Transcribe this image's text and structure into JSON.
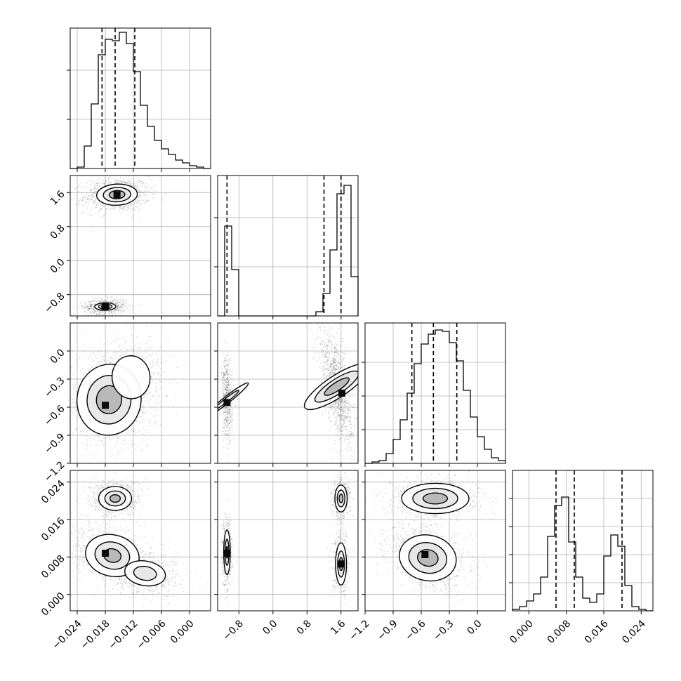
{
  "chart_data": {
    "type": "corner",
    "title": "",
    "params": [
      {
        "id": "p0",
        "range": [
          -0.0255,
          0.0045
        ],
        "ticks": [
          -0.024,
          -0.018,
          -0.012,
          -0.006,
          0.0
        ],
        "tick_labels": [
          "−0.024",
          "−0.018",
          "−0.012",
          "−0.006",
          "0.000"
        ],
        "quantiles": [
          -0.0187,
          -0.0159,
          -0.0117
        ],
        "hist_y_ticks": [
          0.35,
          0.7
        ],
        "hist_ymax": 1.0,
        "hist": [
          0.0,
          0.01,
          0.16,
          0.46,
          0.81,
          0.92,
          0.91,
          0.97,
          0.89,
          0.69,
          0.45,
          0.3,
          0.2,
          0.14,
          0.1,
          0.06,
          0.04,
          0.02,
          0.01,
          0.0
        ]
      },
      {
        "id": "p1",
        "range": [
          -1.3,
          2.0
        ],
        "ticks": [
          -0.8,
          0.0,
          0.8,
          1.6
        ],
        "tick_labels": [
          "−0.8",
          "0.0",
          "0.8",
          "1.6"
        ],
        "quantiles": [
          -1.08,
          1.2,
          1.6
        ],
        "hist_y_ticks": [
          0.35,
          0.7
        ],
        "hist_ymax": 1.0,
        "hist": [
          0.0,
          0.64,
          0.33,
          0.0,
          0.0,
          0.0,
          0.0,
          0.0,
          0.0,
          0.0,
          0.0,
          0.0,
          0.0,
          0.0,
          0.03,
          0.16,
          0.47,
          0.87,
          0.93,
          0.28
        ]
      },
      {
        "id": "p2",
        "range": [
          -1.2,
          0.3
        ],
        "ticks": [
          -1.2,
          -0.9,
          -0.6,
          -0.3,
          0.0
        ],
        "tick_labels": [
          "−1.2",
          "−0.9",
          "−0.6",
          "−0.3",
          "0.0"
        ],
        "quantiles": [
          -0.7,
          -0.47,
          -0.22
        ],
        "hist_y_ticks": [
          0.24,
          0.48,
          0.72
        ],
        "hist_ymax": 1.0,
        "hist": [
          0.0,
          0.01,
          0.02,
          0.07,
          0.17,
          0.31,
          0.5,
          0.71,
          0.85,
          0.92,
          0.95,
          0.94,
          0.86,
          0.73,
          0.52,
          0.33,
          0.19,
          0.1,
          0.04,
          0.02
        ]
      },
      {
        "id": "p3",
        "range": [
          -0.0035,
          0.0265
        ],
        "ticks": [
          0.0,
          0.008,
          0.016,
          0.024
        ],
        "tick_labels": [
          "0.000",
          "0.008",
          "0.016",
          "0.024"
        ],
        "quantiles": [
          0.0058,
          0.0097,
          0.0199
        ],
        "hist_y_ticks": [
          0.2,
          0.4,
          0.6,
          0.8
        ],
        "hist_ymax": 1.0,
        "hist": [
          0.01,
          0.03,
          0.07,
          0.12,
          0.24,
          0.53,
          0.75,
          0.81,
          0.49,
          0.24,
          0.09,
          0.06,
          0.12,
          0.39,
          0.54,
          0.46,
          0.18,
          0.03,
          0.01,
          0.0
        ]
      }
    ],
    "pair_plots": [
      {
        "row": 1,
        "col": 0,
        "clusters": [
          {
            "c": [
              -0.0155,
              1.55
            ],
            "s": [
              0.0028,
              0.16
            ],
            "rho": 0.1,
            "n": 1100,
            "levels": [
              1.55,
              1.05,
              0.6
            ]
          },
          {
            "c": [
              -0.018,
              -1.08
            ],
            "s": [
              0.0018,
              0.07
            ],
            "rho": 0.05,
            "n": 700,
            "levels": [
              1.25,
              0.8,
              0.45
            ]
          }
        ],
        "cores": [
          [
            -0.0155,
            1.55
          ],
          [
            -0.018,
            -1.08
          ]
        ]
      },
      {
        "row": 2,
        "col": 0,
        "clusters": [
          {
            "c": [
              -0.0172,
              -0.52
            ],
            "s": [
              0.0036,
              0.2
            ],
            "rho": -0.15,
            "n": 1300,
            "levels": [
              1.9,
              1.3,
              0.75
            ]
          },
          {
            "c": [
              -0.0125,
              -0.28
            ],
            "s": [
              0.003,
              0.17
            ],
            "rho": 0.1,
            "n": 500,
            "levels": [
              1.35
            ]
          }
        ],
        "cores": [
          [
            -0.018,
            -0.58
          ]
        ]
      },
      {
        "row": 2,
        "col": 1,
        "clusters": [
          {
            "c": [
              -1.08,
              -0.52
            ],
            "s": [
              0.05,
              0.18
            ],
            "rho": -0.2,
            "n": 600,
            "levels": [
              1.6,
              0.9
            ]
          },
          {
            "c": [
              1.5,
              -0.38
            ],
            "s": [
              0.15,
              0.24
            ],
            "rho": -0.55,
            "n": 1300,
            "levels": [
              1.7,
              1.15,
              0.65
            ]
          }
        ],
        "cores": [
          [
            1.62,
            -0.45
          ],
          [
            -1.08,
            -0.55
          ]
        ]
      },
      {
        "row": 3,
        "col": 0,
        "clusters": [
          {
            "c": [
              -0.0159,
              0.0205
            ],
            "s": [
              0.0022,
              0.0016
            ],
            "rho": 0.0,
            "n": 700,
            "levels": [
              1.6,
              1.0,
              0.5
            ]
          },
          {
            "c": [
              -0.0165,
              0.0083
            ],
            "s": [
              0.0034,
              0.0026
            ],
            "rho": -0.35,
            "n": 1000,
            "levels": [
              1.7,
              1.1,
              0.55
            ]
          },
          {
            "c": [
              -0.0095,
              0.0045
            ],
            "s": [
              0.0035,
              0.0021
            ],
            "rho": -0.3,
            "n": 550,
            "levels": [
              1.25,
              0.7
            ]
          }
        ],
        "cores": [
          [
            -0.018,
            0.0088
          ]
        ]
      },
      {
        "row": 3,
        "col": 1,
        "clusters": [
          {
            "c": [
              1.6,
              0.0205
            ],
            "s": [
              0.09,
              0.0018
            ],
            "rho": 0.0,
            "n": 450,
            "levels": [
              1.6,
              1.0,
              0.5
            ]
          },
          {
            "c": [
              1.6,
              0.0065
            ],
            "s": [
              0.08,
              0.0028
            ],
            "rho": 0.0,
            "n": 450,
            "levels": [
              1.6,
              1.0,
              0.5
            ]
          },
          {
            "c": [
              -1.08,
              0.009
            ],
            "s": [
              0.045,
              0.0028
            ],
            "rho": 0.0,
            "n": 550,
            "levels": [
              1.7,
              1.0,
              0.45
            ]
          }
        ],
        "cores": [
          [
            -1.08,
            0.0088
          ],
          [
            1.6,
            0.0065
          ]
        ]
      },
      {
        "row": 3,
        "col": 2,
        "clusters": [
          {
            "c": [
              -0.45,
              0.0205
            ],
            "s": [
              0.2,
              0.0018
            ],
            "rho": 0.0,
            "n": 800,
            "levels": [
              1.8,
              1.2,
              0.65
            ]
          },
          {
            "c": [
              -0.53,
              0.0078
            ],
            "s": [
              0.17,
              0.0027
            ],
            "rho": -0.3,
            "n": 1100,
            "levels": [
              1.8,
              1.2,
              0.65
            ]
          }
        ],
        "cores": [
          [
            -0.56,
            0.0085
          ]
        ]
      }
    ]
  }
}
